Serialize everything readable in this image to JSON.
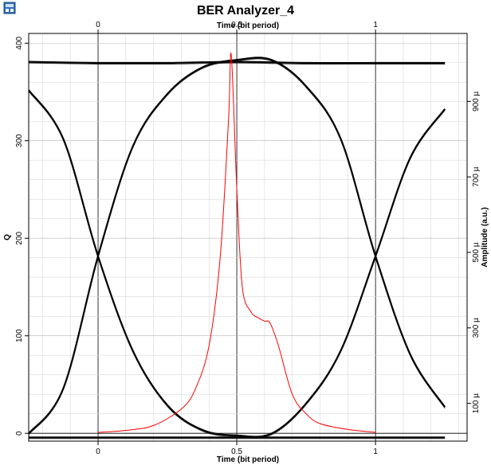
{
  "icons": {
    "app": "ber-analyzer-app-icon"
  },
  "chart_data": {
    "type": "line",
    "title": "BER Analyzer_4",
    "x_top_label": "Time (bit period)",
    "x_bottom_label": "Time (bit period)",
    "y_left_label": "Q",
    "y_right_label": "Amplitude (a.u.)",
    "xlim": [
      -0.25,
      1.33
    ],
    "ylim_left": [
      -8,
      410
    ],
    "ylim_right": [
      0,
      1080
    ],
    "x_ticks": [
      0,
      0.5,
      1
    ],
    "x_tick_labels": [
      "0",
      "0.5",
      "1"
    ],
    "y_left_ticks": [
      0,
      100,
      200,
      300,
      400
    ],
    "y_left_tick_labels": [
      "0",
      "100",
      "200",
      "300",
      "400"
    ],
    "y_right_ticks": [
      100,
      300,
      500,
      700,
      900
    ],
    "y_right_tick_labels": [
      "100 µ",
      "300 µ",
      "500 µ",
      "700 µ",
      "900 µ"
    ],
    "grid": true,
    "colors": {
      "eye": "#000000",
      "q_factor": "#ff0000",
      "grid": "#d8d8d8"
    },
    "series": [
      {
        "axis": "right",
        "color": "#000000",
        "x": [
          -0.25,
          -0.125,
          0,
          0.125,
          0.25,
          0.375,
          0.5,
          0.625,
          0.75,
          0.875,
          1.0,
          1.125,
          1.25
        ],
        "values": [
          20,
          140,
          490,
          780,
          920,
          990,
          1010,
          1010,
          940,
          800,
          490,
          230,
          90
        ]
      },
      {
        "axis": "right",
        "color": "#000000",
        "x": [
          -0.25,
          -0.125,
          0,
          0.125,
          0.25,
          0.375,
          0.5,
          0.625,
          0.75,
          0.875,
          1.0,
          1.125,
          1.25
        ],
        "values": [
          930,
          800,
          490,
          240,
          95,
          30,
          15,
          20,
          100,
          240,
          490,
          750,
          880
        ]
      },
      {
        "axis": "right",
        "color": "#000000",
        "x": [
          -0.25,
          0,
          0.25,
          0.5,
          0.75,
          1.0,
          1.25
        ],
        "values": [
          1005,
          1002,
          1002,
          1005,
          1002,
          1002,
          1002
        ]
      },
      {
        "axis": "right",
        "color": "#000000",
        "x": [
          -0.25,
          0,
          0.25,
          0.5,
          0.75,
          1.0,
          1.25
        ],
        "values": [
          10,
          10,
          10,
          10,
          10,
          10,
          10
        ]
      },
      {
        "axis": "left",
        "color": "#ff0000",
        "x": [
          0,
          0.1,
          0.2,
          0.3,
          0.35,
          0.4,
          0.44,
          0.47,
          0.48,
          0.5,
          0.52,
          0.55,
          0.58,
          0.6,
          0.62,
          0.65,
          0.7,
          0.75,
          0.8,
          0.9,
          1.0
        ],
        "values": [
          1,
          3,
          8,
          25,
          45,
          90,
          180,
          320,
          388,
          250,
          150,
          125,
          118,
          115,
          113,
          90,
          40,
          20,
          10,
          4,
          1
        ]
      }
    ]
  }
}
